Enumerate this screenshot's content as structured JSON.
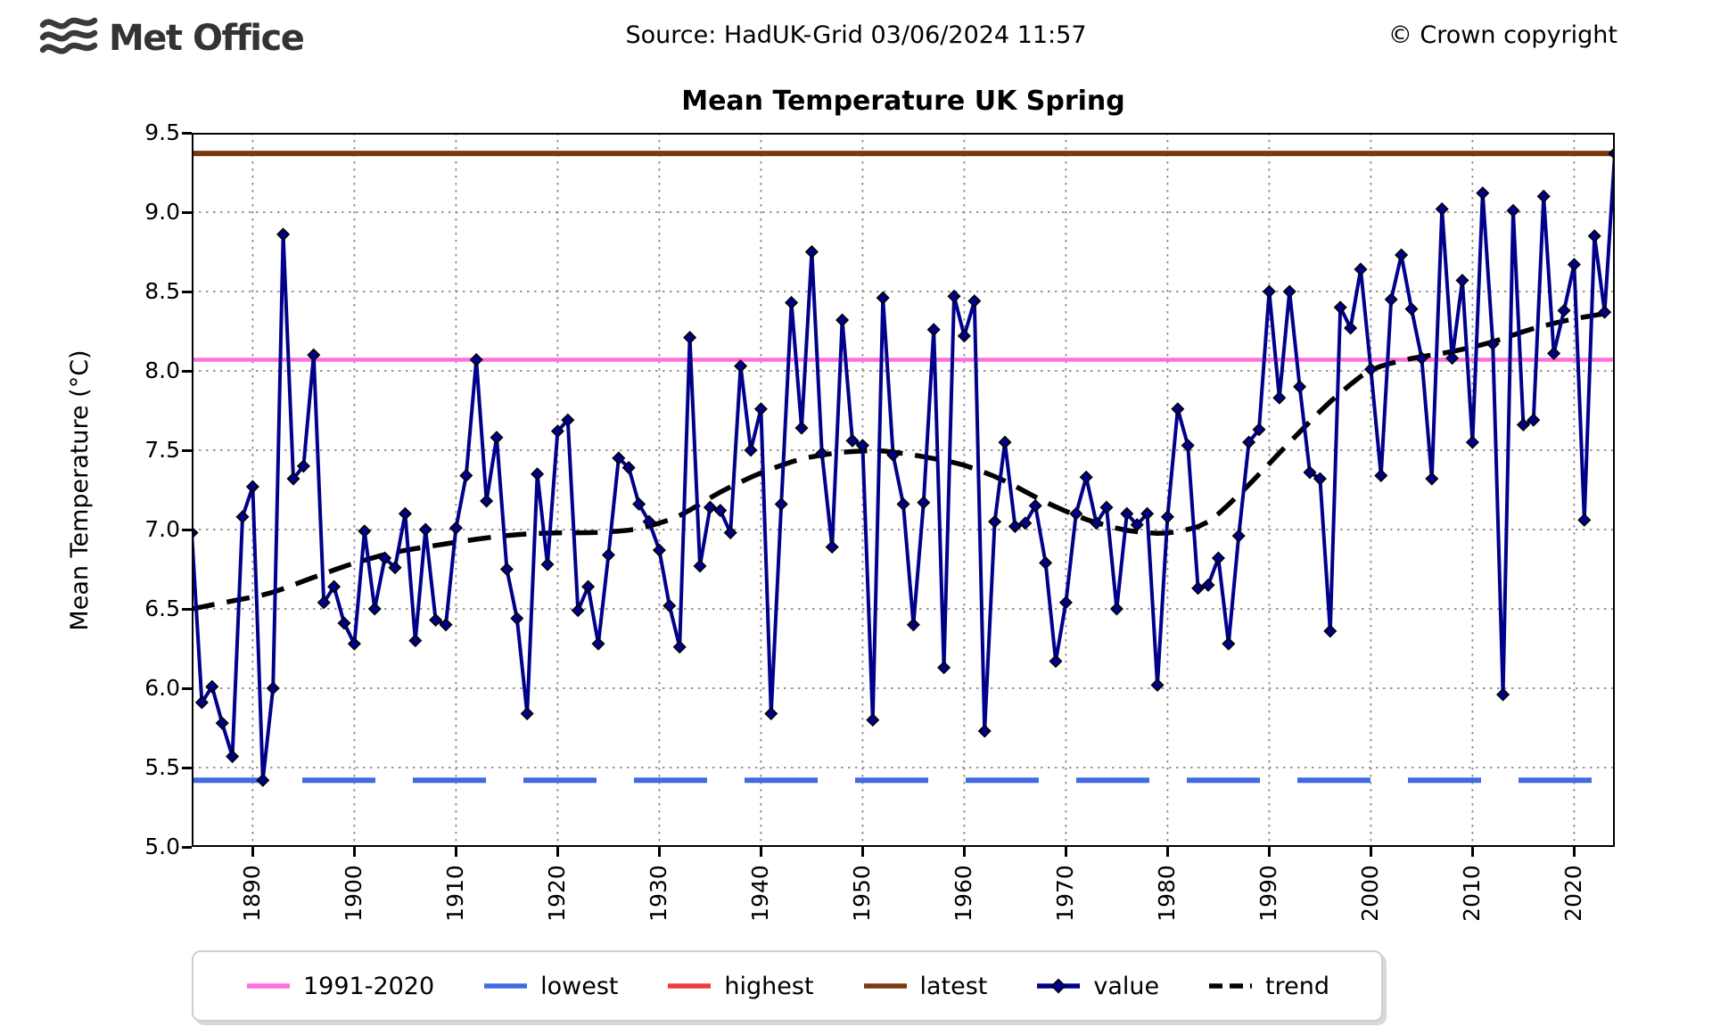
{
  "header": {
    "logo_text": "Met Office",
    "source": "Source: HadUK-Grid 03/06/2024 11:57",
    "copyright": "© Crown copyright"
  },
  "chart_data": {
    "type": "line",
    "title": "Mean Temperature UK Spring",
    "xlabel": "",
    "ylabel": "Mean Temperature (°C)",
    "xlim": [
      1884,
      2024
    ],
    "ylim": [
      5.0,
      9.5
    ],
    "grid": true,
    "y_ticks": [
      "5.0",
      "5.5",
      "6.0",
      "6.5",
      "7.0",
      "7.5",
      "8.0",
      "8.5",
      "9.0",
      "9.5"
    ],
    "x_ticks": [
      1890,
      1900,
      1910,
      1920,
      1930,
      1940,
      1950,
      1960,
      1970,
      1980,
      1990,
      2000,
      2010,
      2020
    ],
    "legend_position": "bottom",
    "reference_lines": [
      {
        "id": "mean_1991_2020",
        "label": "1991-2020",
        "value": 8.07,
        "color": "#FF6EE0",
        "style": "solid",
        "width": 4.5
      },
      {
        "id": "lowest",
        "label": "lowest",
        "value": 5.42,
        "color": "#4169E1",
        "style": "dashed",
        "width": 6
      },
      {
        "id": "highest",
        "label": "highest",
        "value": 9.37,
        "color": "#EF3B3B",
        "style": "solid",
        "width": 4.5
      },
      {
        "id": "latest",
        "label": "latest",
        "value": 9.37,
        "color": "#7A380E",
        "style": "solid",
        "width": 6
      }
    ],
    "series": [
      {
        "name": "value",
        "color": "#00008B",
        "marker": "diamond",
        "start_year": 1884,
        "values": [
          6.98,
          5.91,
          6.01,
          5.78,
          5.57,
          7.08,
          7.27,
          5.42,
          6.0,
          8.86,
          7.32,
          7.4,
          8.1,
          6.54,
          6.64,
          6.41,
          6.28,
          6.99,
          6.5,
          6.82,
          6.76,
          7.1,
          6.3,
          7.0,
          6.43,
          6.4,
          7.01,
          7.34,
          8.07,
          7.18,
          7.58,
          6.75,
          6.44,
          5.84,
          7.35,
          6.78,
          7.62,
          7.69,
          6.49,
          6.64,
          6.28,
          6.84,
          7.45,
          7.39,
          7.16,
          7.05,
          6.87,
          6.52,
          6.26,
          8.21,
          6.77,
          7.14,
          7.12,
          6.98,
          8.03,
          7.5,
          7.76,
          5.84,
          7.16,
          8.43,
          7.64,
          8.75,
          7.48,
          6.89,
          8.32,
          7.56,
          7.53,
          5.8,
          8.46,
          7.47,
          7.16,
          6.4,
          7.17,
          8.26,
          6.13,
          8.47,
          8.22,
          8.44,
          5.73,
          7.05,
          7.55,
          7.02,
          7.04,
          7.15,
          6.79,
          6.17,
          6.54,
          7.1,
          7.33,
          7.04,
          7.14,
          6.5,
          7.1,
          7.03,
          7.1,
          6.02,
          7.08,
          7.76,
          7.53,
          6.63,
          6.65,
          6.82,
          6.28,
          6.96,
          7.55,
          7.63,
          8.5,
          7.83,
          8.5,
          7.9,
          7.36,
          7.32,
          6.36,
          8.4,
          8.27,
          8.64,
          8.01,
          7.34,
          8.45,
          8.73,
          8.39,
          8.08,
          7.32,
          9.02,
          8.08,
          8.57,
          7.55,
          9.12,
          8.17,
          5.96,
          9.01,
          7.66,
          7.69,
          9.1,
          8.11,
          8.38,
          8.67,
          7.06,
          8.85,
          8.37,
          9.37
        ]
      },
      {
        "name": "trend",
        "color": "#000000",
        "style": "dashed",
        "points_years": [
          1884,
          1888,
          1892,
          1896,
          1900,
          1904,
          1908,
          1912,
          1916,
          1920,
          1924,
          1928,
          1932,
          1936,
          1940,
          1944,
          1948,
          1952,
          1956,
          1960,
          1964,
          1968,
          1972,
          1976,
          1980,
          1984,
          1988,
          1992,
          1996,
          2000,
          2004,
          2008,
          2012,
          2016,
          2020,
          2024
        ],
        "points_values": [
          6.5,
          6.55,
          6.6,
          6.7,
          6.79,
          6.86,
          6.9,
          6.94,
          6.97,
          6.98,
          6.98,
          7.0,
          7.08,
          7.24,
          7.36,
          7.45,
          7.49,
          7.5,
          7.46,
          7.41,
          7.31,
          7.17,
          7.06,
          6.99,
          6.97,
          7.03,
          7.28,
          7.55,
          7.81,
          8.02,
          8.08,
          8.12,
          8.18,
          8.27,
          8.33,
          8.37
        ]
      }
    ],
    "legend": [
      {
        "label": "1991-2020",
        "color": "#FF6EE0",
        "swatch": "line"
      },
      {
        "label": "lowest",
        "color": "#4169E1",
        "swatch": "line"
      },
      {
        "label": "highest",
        "color": "#EF3B3B",
        "swatch": "line"
      },
      {
        "label": "latest",
        "color": "#7A380E",
        "swatch": "line"
      },
      {
        "label": "value",
        "color": "#00008B",
        "swatch": "line-marker"
      },
      {
        "label": "trend",
        "color": "#000000",
        "swatch": "dashed"
      }
    ]
  }
}
